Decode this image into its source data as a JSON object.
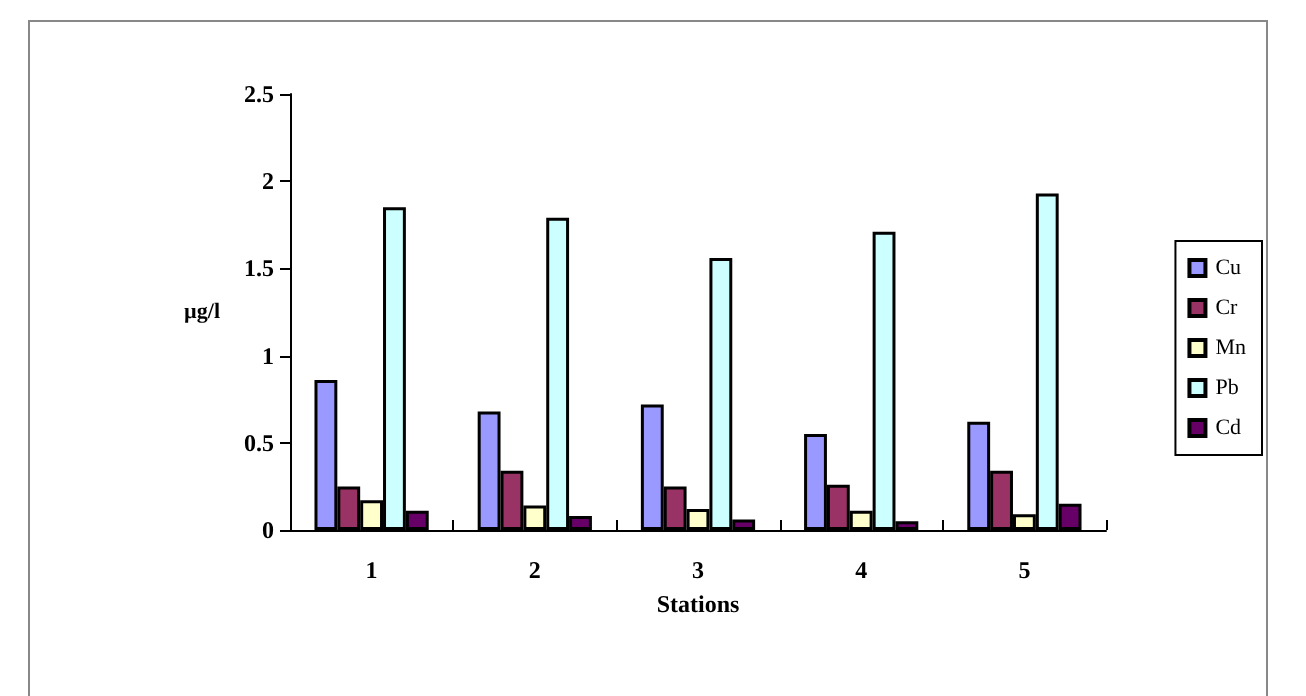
{
  "chart_data": {
    "type": "bar",
    "xlabel": "Stations",
    "ylabel": "µg/l",
    "categories": [
      "1",
      "2",
      "3",
      "4",
      "5"
    ],
    "series": [
      {
        "name": "Cu",
        "color": "#9999ff",
        "values": [
          0.86,
          0.68,
          0.72,
          0.55,
          0.62
        ]
      },
      {
        "name": "Cr",
        "color": "#993366",
        "values": [
          0.25,
          0.34,
          0.25,
          0.26,
          0.34
        ]
      },
      {
        "name": "Mn",
        "color": "#ffffcc",
        "values": [
          0.17,
          0.14,
          0.12,
          0.11,
          0.09
        ]
      },
      {
        "name": "Pb",
        "color": "#ccffff",
        "values": [
          1.85,
          1.79,
          1.56,
          1.71,
          1.93
        ]
      },
      {
        "name": "Cd",
        "color": "#660066",
        "values": [
          0.11,
          0.08,
          0.06,
          0.05,
          0.15
        ]
      }
    ],
    "ylim": [
      0,
      2.5
    ],
    "yticks": [
      0,
      0.5,
      1,
      1.5,
      2,
      2.5
    ],
    "grid": false,
    "legend": "right"
  }
}
